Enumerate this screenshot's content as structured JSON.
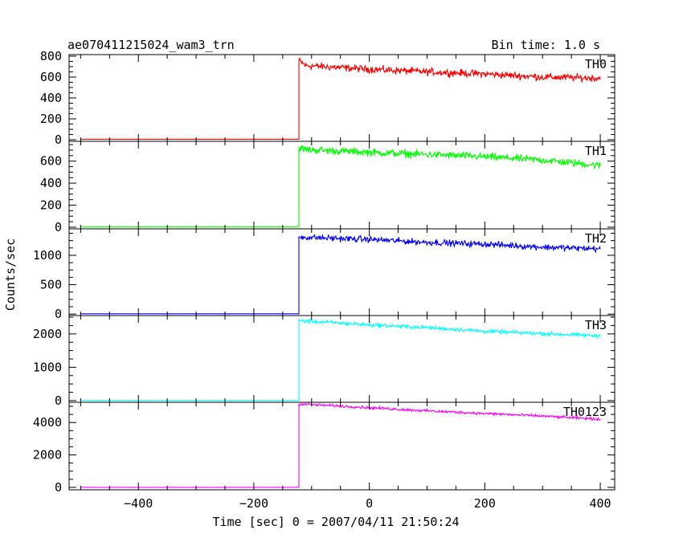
{
  "header": {
    "title": "ae070411215024_wam3_trn",
    "bin_time": "Bin time: 1.0 s"
  },
  "axes": {
    "xlabel": "Time [sec] 0 = 2007/04/11 21:50:24",
    "ylabel": "Counts/sec",
    "xlim": [
      -520,
      425
    ],
    "xticks": [
      -400,
      -200,
      0,
      200,
      400
    ],
    "xtick_labels": [
      "−400",
      "−200",
      "0",
      "200",
      "400"
    ]
  },
  "chart_data": {
    "type": "line",
    "onset_time": -122,
    "series": [
      {
        "name": "TH0",
        "color": "#ff0000",
        "ylim": [
          -15,
          815
        ],
        "yticks": [
          0,
          200,
          400,
          600,
          800
        ],
        "pre_level": 5,
        "post_profile": [
          [
            -122,
            760
          ],
          [
            -110,
            710
          ],
          [
            0,
            675
          ],
          [
            100,
            650
          ],
          [
            200,
            630
          ],
          [
            300,
            600
          ],
          [
            400,
            590
          ]
        ],
        "noise": 30
      },
      {
        "name": "TH1",
        "color": "#00ff00",
        "ylim": [
          -15,
          780
        ],
        "yticks": [
          0,
          200,
          400,
          600
        ],
        "pre_level": 5,
        "post_profile": [
          [
            -122,
            720
          ],
          [
            -110,
            705
          ],
          [
            0,
            680
          ],
          [
            100,
            660
          ],
          [
            200,
            640
          ],
          [
            300,
            610
          ],
          [
            400,
            560
          ]
        ],
        "noise": 30
      },
      {
        "name": "TH2",
        "color": "#0000ff",
        "ylim": [
          -25,
          1450
        ],
        "yticks": [
          0,
          500,
          1000
        ],
        "pre_level": 5,
        "post_profile": [
          [
            -122,
            1310
          ],
          [
            0,
            1270
          ],
          [
            100,
            1220
          ],
          [
            200,
            1190
          ],
          [
            300,
            1140
          ],
          [
            400,
            1110
          ]
        ],
        "noise": 45
      },
      {
        "name": "TH3",
        "color": "#00ffff",
        "ylim": [
          -50,
          2550
        ],
        "yticks": [
          0,
          1000,
          2000
        ],
        "pre_level": 5,
        "post_profile": [
          [
            -122,
            2400
          ],
          [
            0,
            2270
          ],
          [
            100,
            2190
          ],
          [
            200,
            2080
          ],
          [
            300,
            2010
          ],
          [
            400,
            1940
          ]
        ],
        "noise": 50
      },
      {
        "name": "TH0123",
        "color": "#ff00ff",
        "ylim": [
          -150,
          5250
        ],
        "yticks": [
          0,
          2000,
          4000
        ],
        "pre_level": 5,
        "post_profile": [
          [
            -122,
            5150
          ],
          [
            0,
            4920
          ],
          [
            100,
            4720
          ],
          [
            200,
            4560
          ],
          [
            300,
            4400
          ],
          [
            400,
            4200
          ]
        ],
        "noise": 70
      }
    ]
  }
}
